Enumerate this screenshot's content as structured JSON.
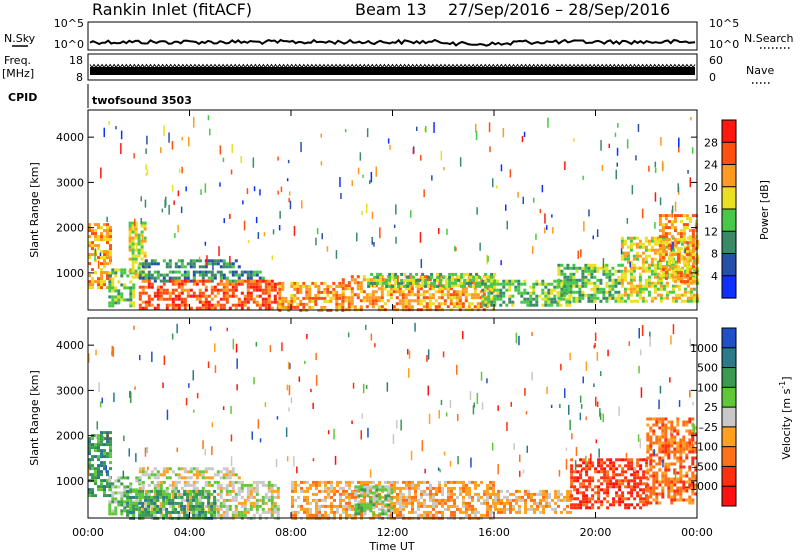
{
  "header": {
    "station": "Rankin Inlet (fitACF)",
    "beam": "Beam 13",
    "date_range": "27/Sep/2016 – 28/Sep/2016"
  },
  "noise": {
    "left_label": "N.Sky",
    "right_label": "N.Search",
    "tick_top": "10^5",
    "tick_bottom": "10^0"
  },
  "freq": {
    "left_label_1": "Freq.",
    "left_label_2": "[MHz]",
    "ticks_left": [
      "18",
      "8"
    ],
    "ticks_right": [
      "60",
      "0"
    ],
    "right_label": "Nave"
  },
  "cpid": {
    "label": "CPID",
    "value": "twofsound 3503"
  },
  "chart_data": [
    {
      "type": "heatmap",
      "name": "power",
      "ylabel": "Slant Range [km]",
      "ylim": [
        180,
        4600
      ],
      "yticks": [
        "1000",
        "2000",
        "3000",
        "4000"
      ],
      "ytick_values": [
        1000,
        2000,
        3000,
        4000
      ],
      "xlim": [
        0,
        24
      ],
      "colorbar_label": "Power [dB]",
      "colorbar_ticks": [
        "4",
        "8",
        "12",
        "16",
        "20",
        "24",
        "28"
      ],
      "colorbar_colors": [
        "#1030ff",
        "#2850a8",
        "#3a8a68",
        "#48c848",
        "#e8e020",
        "#ff9a20",
        "#ff5010",
        "#ff1810"
      ],
      "echo_regions": [
        {
          "t0": 0.0,
          "t1": 0.9,
          "r0": 700,
          "r1": 2100,
          "level": 5
        },
        {
          "t0": 0.8,
          "t1": 1.8,
          "r0": 300,
          "r1": 1100,
          "level": 3
        },
        {
          "t0": 1.6,
          "t1": 2.3,
          "r0": 900,
          "r1": 2200,
          "level": 4
        },
        {
          "t0": 2.0,
          "t1": 6.0,
          "r0": 1150,
          "r1": 1300,
          "level": 2
        },
        {
          "t0": 2.0,
          "t1": 7.0,
          "r0": 850,
          "r1": 1050,
          "level": 2
        },
        {
          "t0": 2.0,
          "t1": 7.5,
          "r0": 200,
          "r1": 850,
          "level": 6
        },
        {
          "t0": 7.5,
          "t1": 10.0,
          "r0": 200,
          "r1": 800,
          "level": 5
        },
        {
          "t0": 10.0,
          "t1": 16.0,
          "r0": 200,
          "r1": 950,
          "level": 5
        },
        {
          "t0": 11.0,
          "t1": 16.0,
          "r0": 700,
          "r1": 1000,
          "level": 3
        },
        {
          "t0": 15.5,
          "t1": 19.0,
          "r0": 300,
          "r1": 850,
          "level": 3
        },
        {
          "t0": 18.5,
          "t1": 21.0,
          "r0": 400,
          "r1": 1200,
          "level": 3
        },
        {
          "t0": 21.0,
          "t1": 24.0,
          "r0": 400,
          "r1": 1800,
          "level": 4
        },
        {
          "t0": 22.5,
          "t1": 24.0,
          "r0": 800,
          "r1": 2300,
          "level": 5
        }
      ]
    },
    {
      "type": "heatmap",
      "name": "velocity",
      "ylabel": "Slant Range [km]",
      "ylim": [
        180,
        4600
      ],
      "yticks": [
        "1000",
        "2000",
        "3000",
        "4000"
      ],
      "ytick_values": [
        1000,
        2000,
        3000,
        4000
      ],
      "xlim": [
        0,
        24
      ],
      "xticks": [
        "00:00",
        "04:00",
        "08:00",
        "12:00",
        "16:00",
        "20:00",
        "00:00"
      ],
      "xlabel": "Time UT",
      "colorbar_label": "Velocity [m s^-1]",
      "colorbar_ticks": [
        "1000",
        "500",
        "100",
        "25",
        "–25",
        "–100",
        "–500",
        "–1000"
      ],
      "colorbar_colors": [
        "#2050c8",
        "#2a7a8a",
        "#3a9a50",
        "#60c838",
        "#c8c8c8",
        "#ffa020",
        "#ff7018",
        "#ff3010",
        "#ff1010"
      ],
      "echo_regions": [
        {
          "t0": 0.0,
          "t1": 0.9,
          "r0": 700,
          "r1": 2100,
          "level": 2
        },
        {
          "t0": 0.8,
          "t1": 2.0,
          "r0": 300,
          "r1": 1100,
          "level": 3
        },
        {
          "t0": 2.0,
          "t1": 6.0,
          "r0": 1100,
          "r1": 1300,
          "level": 4
        },
        {
          "t0": 2.0,
          "t1": 7.5,
          "r0": 200,
          "r1": 1000,
          "level": 4
        },
        {
          "t0": 1.5,
          "t1": 5.0,
          "r0": 200,
          "r1": 800,
          "level": 2
        },
        {
          "t0": 8.0,
          "t1": 16.0,
          "r0": 200,
          "r1": 1000,
          "level": 5
        },
        {
          "t0": 10.5,
          "t1": 12.0,
          "r0": 300,
          "r1": 900,
          "level": 3
        },
        {
          "t0": 16.0,
          "t1": 19.0,
          "r0": 300,
          "r1": 800,
          "level": 5
        },
        {
          "t0": 19.0,
          "t1": 22.0,
          "r0": 400,
          "r1": 1500,
          "level": 7
        },
        {
          "t0": 22.0,
          "t1": 24.0,
          "r0": 500,
          "r1": 2400,
          "level": 6
        }
      ]
    }
  ]
}
